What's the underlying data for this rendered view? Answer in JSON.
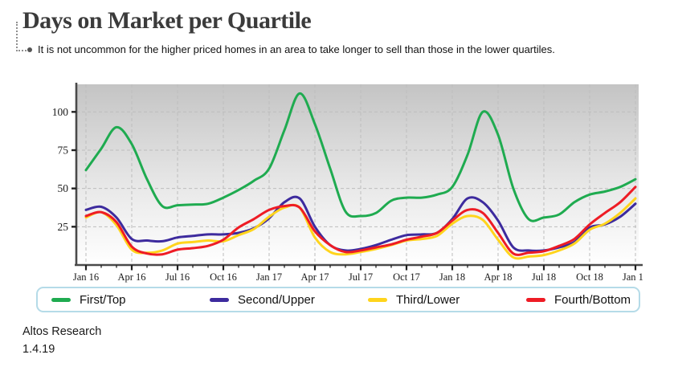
{
  "header": {
    "title": "Days on Market per Quartile",
    "subtitle": "It is not uncommon for the higher priced homes in an area to take longer to sell than those in the lower quartiles."
  },
  "footer": {
    "source": "Altos Research",
    "date": "1.4.19"
  },
  "colors": {
    "title": "#3b3b3b",
    "axis": "#4a4a4a",
    "grid": "#bdbdbd",
    "plot_gradient_top": "#c4c4c4",
    "plot_gradient_bottom": "#ffffff",
    "legend_border": "#b5dbe8",
    "text": "#1a1a1a"
  },
  "chart_data": {
    "type": "line",
    "title": "Days on Market per Quartile",
    "x_unit": "month",
    "x_start": "Jan 2016",
    "x_end": "Jan 2019",
    "x_labels": [
      "Jan 16",
      "Apr 16",
      "Jul 16",
      "Oct 16",
      "Jan 17",
      "Apr 17",
      "Jul 17",
      "Oct 17",
      "Jan 18",
      "Apr 18",
      "Jul 18",
      "Oct 18",
      "Jan 19"
    ],
    "y_ticks": [
      25,
      50,
      75,
      100
    ],
    "ylim": [
      0,
      118
    ],
    "ylabel": "",
    "xlabel": "",
    "grid": true,
    "legend_position": "bottom",
    "series": [
      {
        "name": "First/Top",
        "color": "#1fab50",
        "values": [
          62,
          76,
          90,
          79,
          56,
          38.5,
          39,
          39.5,
          40,
          44,
          49,
          55,
          63,
          88,
          112,
          92,
          63,
          35,
          32,
          34,
          42,
          44,
          44,
          46,
          51,
          72,
          100,
          85,
          50,
          30,
          31,
          33,
          41,
          46,
          48,
          51,
          56
        ]
      },
      {
        "name": "Second/Upper",
        "color": "#3d2b9e",
        "values": [
          36,
          38,
          31,
          17,
          16,
          15.5,
          18,
          19,
          20,
          20,
          21,
          24,
          30.5,
          41,
          43.5,
          25,
          13,
          9.5,
          10.5,
          13,
          16.5,
          19.5,
          20,
          21,
          30,
          43.5,
          41,
          29,
          11.5,
          9.5,
          9.5,
          11.5,
          15,
          24.5,
          26.5,
          31.5,
          40
        ]
      },
      {
        "name": "Third/Lower",
        "color": "#ffd41c",
        "values": [
          31,
          34.5,
          26,
          10,
          8,
          9.5,
          14,
          15,
          16,
          15.5,
          19.5,
          23.5,
          31.5,
          37.5,
          37.5,
          18,
          8.5,
          7,
          8.5,
          10.5,
          13,
          16,
          17,
          19,
          27,
          32,
          29.5,
          16.5,
          5,
          5.5,
          6.5,
          9.5,
          14,
          23,
          27,
          34,
          43.5
        ]
      },
      {
        "name": "Fourth/Bottom",
        "color": "#ee1c25",
        "values": [
          32,
          34.5,
          28,
          12,
          7.5,
          7,
          10,
          11,
          12.5,
          16.5,
          24.5,
          30,
          36,
          38.5,
          37.5,
          22,
          13,
          8.5,
          9.5,
          11.5,
          13.5,
          16.5,
          18.5,
          21,
          29,
          36,
          34,
          21,
          7.5,
          8,
          9,
          12.5,
          17,
          26.5,
          34,
          41,
          51
        ]
      }
    ]
  }
}
